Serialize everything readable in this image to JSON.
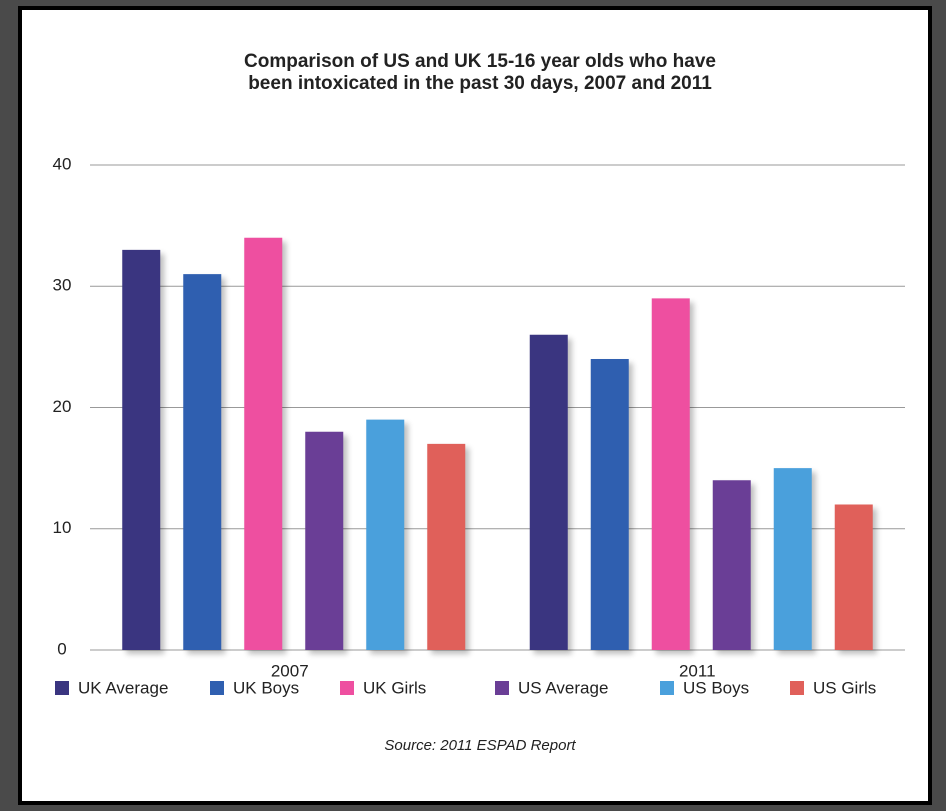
{
  "chart_data": {
    "type": "bar",
    "title": [
      "Comparison of US and UK 15-16 year olds who have",
      "been intoxicated in the past 30 days, 2007 and 2011"
    ],
    "categories": [
      "2007",
      "2011"
    ],
    "series": [
      {
        "name": "UK Average",
        "color": "#3a3580",
        "values": [
          33,
          26
        ]
      },
      {
        "name": "UK Boys",
        "color": "#2f5fb0",
        "values": [
          31,
          24
        ]
      },
      {
        "name": "UK Girls",
        "color": "#ee4fa0",
        "values": [
          34,
          29
        ]
      },
      {
        "name": "US Average",
        "color": "#6a3e96",
        "values": [
          18,
          14
        ]
      },
      {
        "name": "US Boys",
        "color": "#4aa0dc",
        "values": [
          19,
          15
        ]
      },
      {
        "name": "US Girls",
        "color": "#e0605a",
        "values": [
          17,
          12
        ]
      }
    ],
    "ylim": [
      0,
      40
    ],
    "yticks": [
      0,
      10,
      20,
      30,
      40
    ],
    "grid": true,
    "source": "Source: 2011 ESPAD Report"
  }
}
